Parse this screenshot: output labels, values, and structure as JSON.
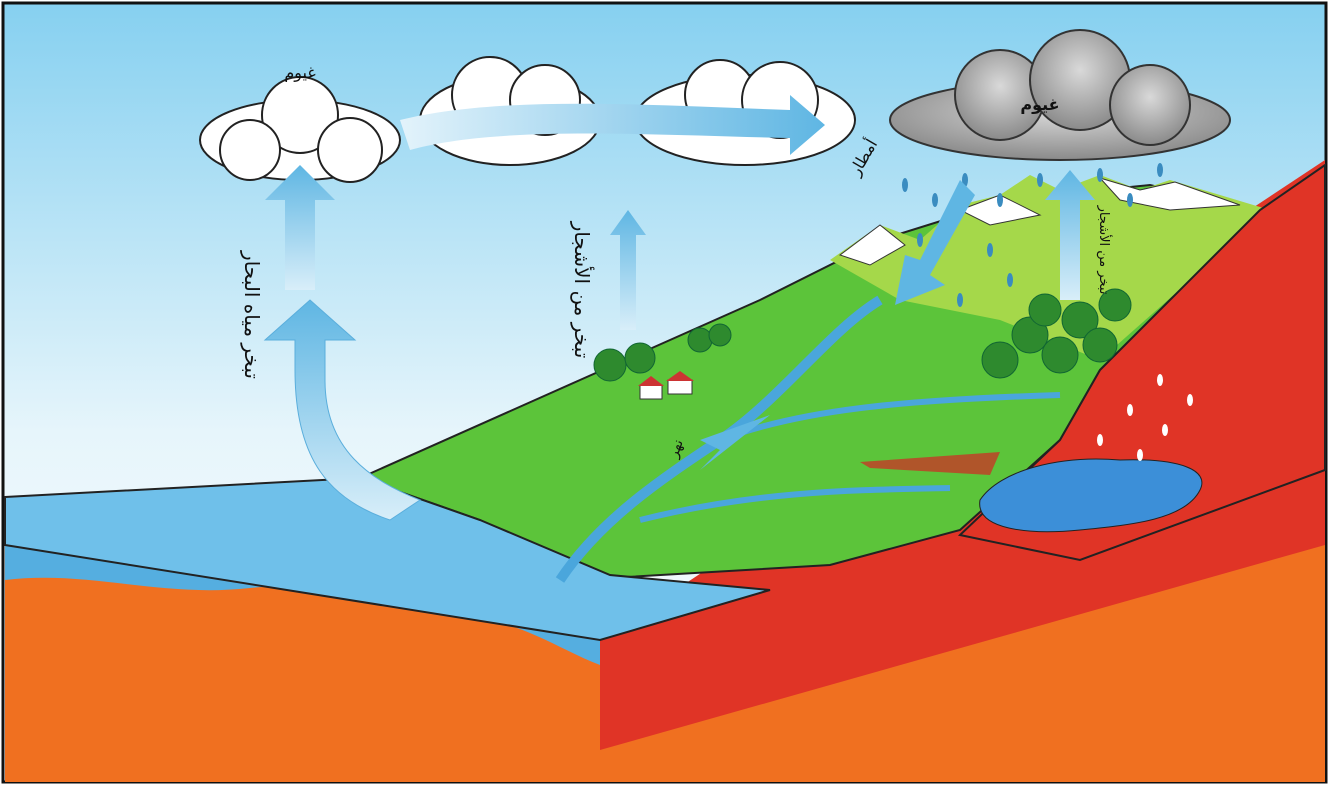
{
  "labels": {
    "clouds_left": "غيوم",
    "clouds_rain": "غيوم",
    "sea_evaporation": "تبخر مياه البحار",
    "tree_evaporation": "تبخر من الأشجار",
    "rain": "أمطار",
    "tree_evaporation_right": "تبخر من الأشجار",
    "river": "نهر"
  }
}
